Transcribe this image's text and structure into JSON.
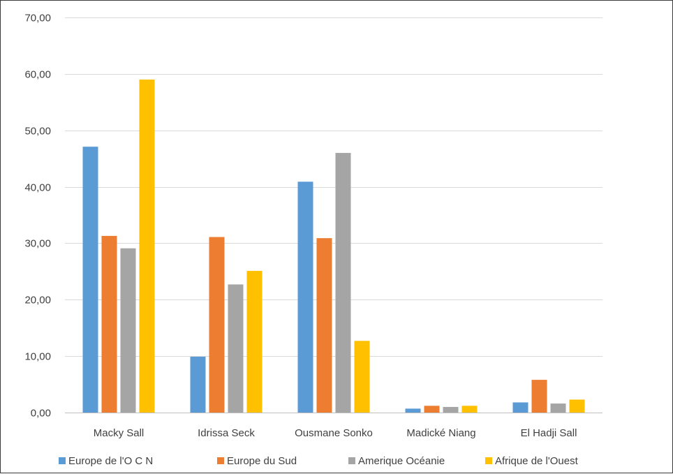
{
  "chart_data": {
    "type": "bar",
    "title": "",
    "xlabel": "",
    "ylabel": "",
    "categories": [
      "Macky Sall",
      "Idrissa Seck",
      "Ousmane Sonko",
      "Madické Niang",
      "El Hadji Sall"
    ],
    "series": [
      {
        "name": "Europe de l'O C N",
        "color": "#5B9BD5",
        "values": [
          47.1,
          9.9,
          40.9,
          0.7,
          1.8
        ]
      },
      {
        "name": "Europe du Sud",
        "color": "#ED7D31",
        "values": [
          31.3,
          31.1,
          30.9,
          1.2,
          5.8
        ]
      },
      {
        "name": "Amerique Océanie",
        "color": "#A5A5A5",
        "values": [
          29.1,
          22.7,
          46.0,
          1.0,
          1.6
        ]
      },
      {
        "name": "Afrique de l'Ouest",
        "color": "#FFC000",
        "values": [
          59.0,
          25.1,
          12.7,
          1.2,
          2.3
        ]
      }
    ],
    "ylim": [
      0,
      70
    ],
    "yticks": [
      "0,00",
      "10,00",
      "20,00",
      "30,00",
      "40,00",
      "50,00",
      "60,00",
      "70,00"
    ],
    "grid": true,
    "legend": "bottom"
  }
}
